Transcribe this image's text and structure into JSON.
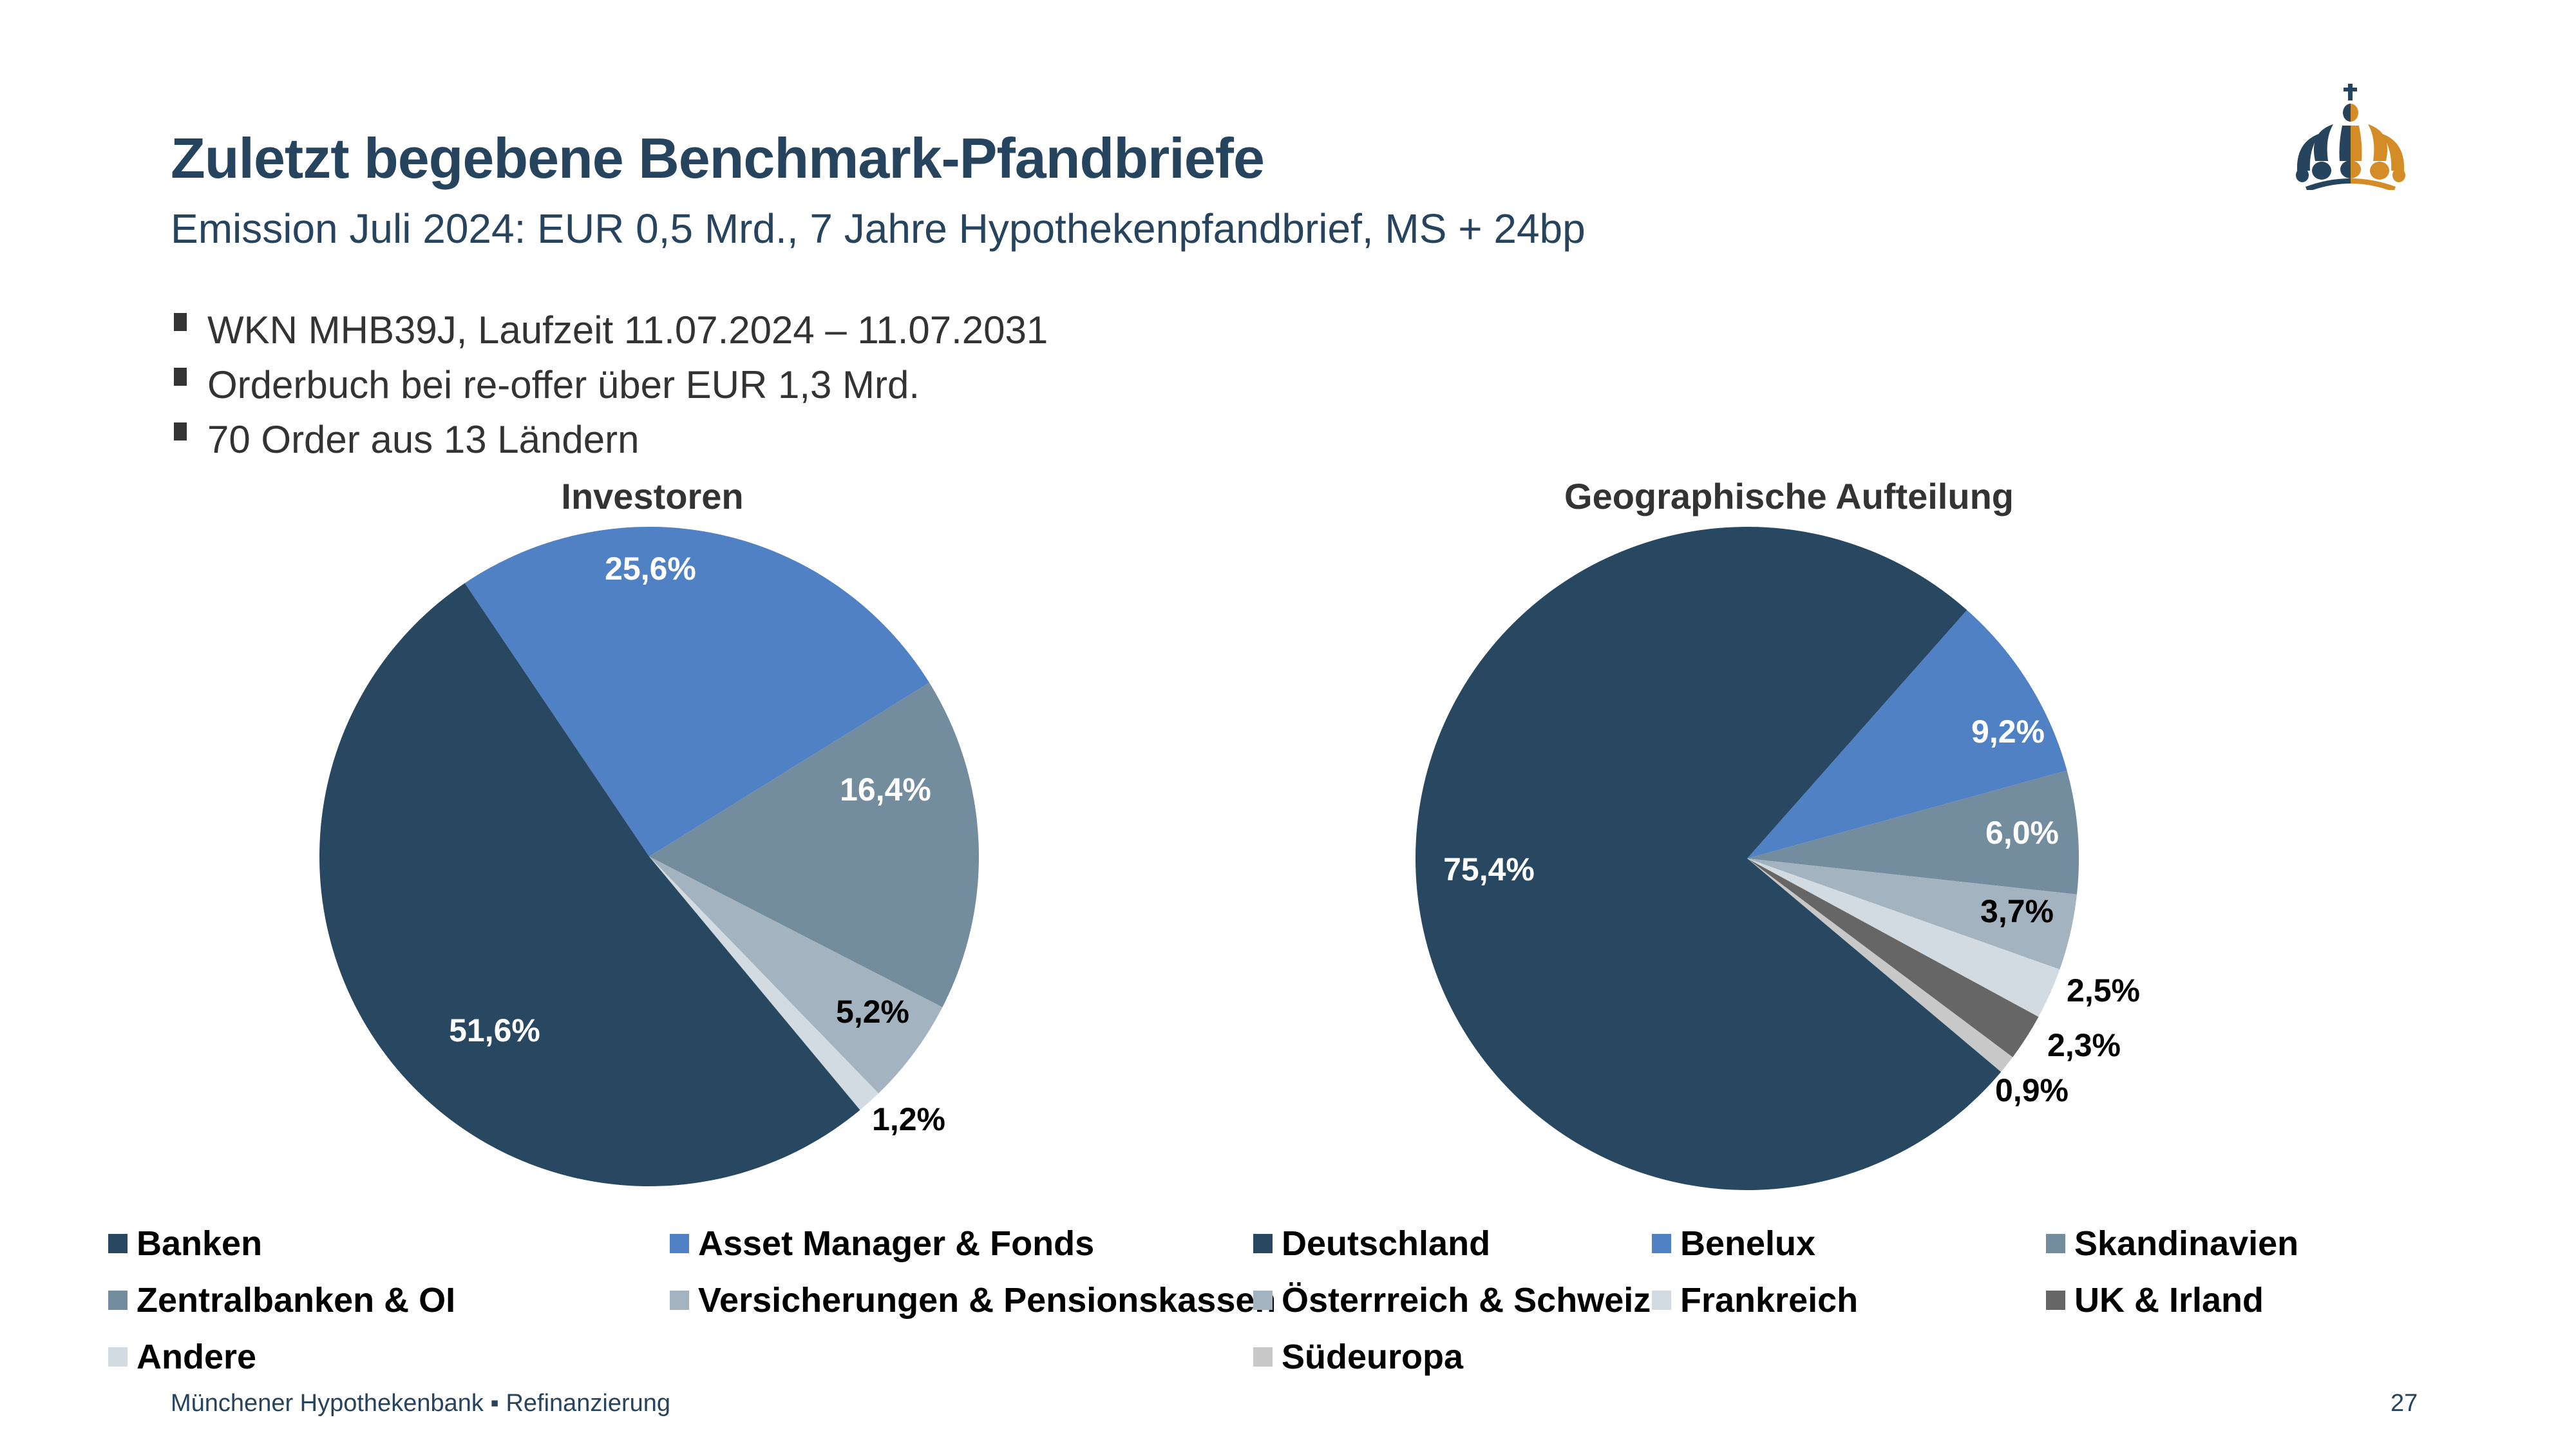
{
  "header": {
    "title": "Zuletzt begebene Benchmark-Pfandbriefe",
    "subtitle": "Emission Juli 2024: EUR 0,5 Mrd., 7 Jahre Hypothekenpfandbrief, MS + 24bp"
  },
  "bullets": [
    "WKN MHB39J, Laufzeit 11.07.2024 – 11.07.2031",
    "Orderbuch bei re-offer über EUR 1,3 Mrd.",
    "70 Order aus 13 Ländern"
  ],
  "logo": {
    "icon": "crown-icon",
    "colors": {
      "left": "#27445e",
      "right": "#d48c26"
    }
  },
  "chart_data": [
    {
      "type": "pie",
      "title": "Investoren",
      "unit": "%",
      "labels": [
        "Asset Manager & Fonds",
        "Zentralbanken & OI",
        "Versicherungen & Pensionskassen",
        "Andere",
        "Banken"
      ],
      "values": [
        25.6,
        16.4,
        5.2,
        1.2,
        51.6
      ],
      "value_labels": [
        "25,6%",
        "16,4%",
        "5,2%",
        "1,2%",
        "51,6%"
      ],
      "colors": [
        "#4f81c4",
        "#738c9e",
        "#a3b3bf",
        "#d2dbe1",
        "#284761"
      ],
      "label_colors": [
        "#ffffff",
        "#ffffff",
        "#000000",
        "#000000",
        "#ffffff"
      ],
      "start_angle_deg": 326,
      "legend": {
        "placement": "bottom",
        "entries": [
          "Banken",
          "Asset Manager & Fonds",
          "Zentralbanken & OI",
          "Versicherungen & Pensionskassen",
          "Andere"
        ],
        "colors": [
          "#284761",
          "#4f81c4",
          "#738c9e",
          "#a3b3bf",
          "#d2dbe1"
        ]
      }
    },
    {
      "type": "pie",
      "title": "Geographische Aufteilung",
      "unit": "%",
      "labels": [
        "Benelux",
        "Skandinavien",
        "Österreich & Schweiz",
        "Frankreich",
        "UK & Irland",
        "Südeuropa",
        "Deutschland"
      ],
      "values": [
        9.2,
        6.0,
        3.7,
        2.5,
        2.3,
        0.9,
        75.4
      ],
      "value_labels": [
        "9,2%",
        "6,0%",
        "3,7%",
        "2,5%",
        "2,3%",
        "0,9%",
        "75,4%"
      ],
      "colors": [
        "#4f81c4",
        "#738c9e",
        "#a3b3bf",
        "#d2dbe1",
        "#666666",
        "#c8c8c8",
        "#284761"
      ],
      "label_colors": [
        "#ffffff",
        "#ffffff",
        "#000000",
        "#000000",
        "#000000",
        "#000000",
        "#ffffff"
      ],
      "start_angle_deg": 41.5,
      "legend": {
        "placement": "bottom",
        "entries": [
          "Deutschland",
          "Benelux",
          "Skandinavien",
          "Österrreich & Schweiz",
          "Frankreich",
          "UK & Irland",
          "Südeuropa"
        ],
        "colors": [
          "#284761",
          "#4f81c4",
          "#738c9e",
          "#a3b3bf",
          "#d2dbe1",
          "#666666",
          "#c8c8c8"
        ]
      }
    }
  ],
  "footer": {
    "text": "Münchener Hypothekenbank ▪ Refinanzierung",
    "page_number": "27"
  }
}
